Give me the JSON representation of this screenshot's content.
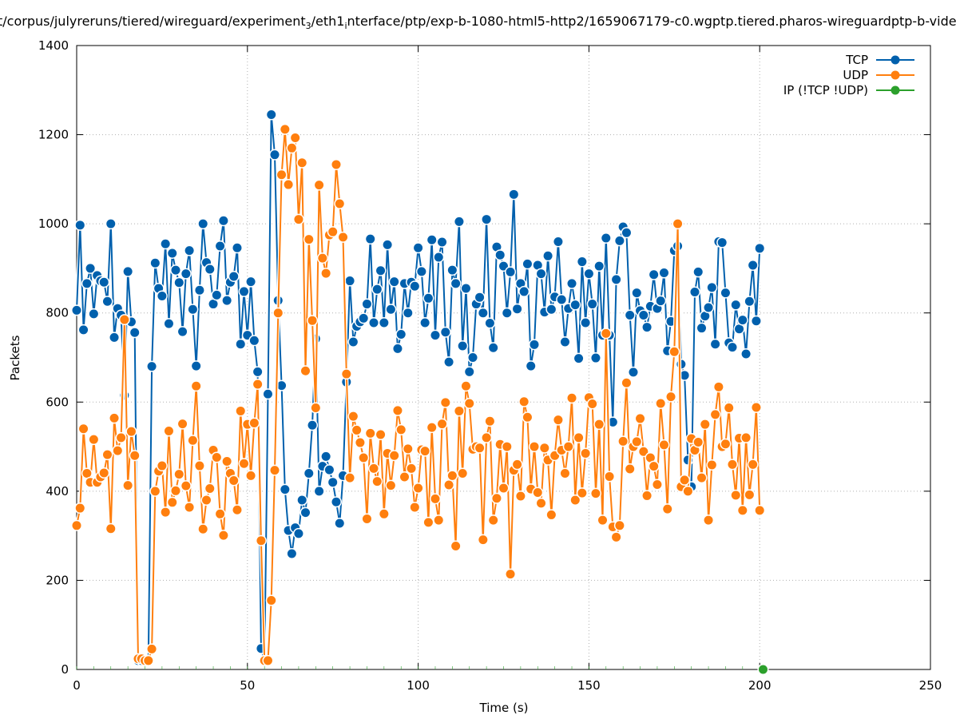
{
  "chart_data": {
    "type": "line",
    "title_parts": [
      "t/corpus/julyreruns/tiered/wireguard/experiment",
      "3",
      "/eth1",
      "i",
      "nterface/ptp/exp-b-1080-html5-http2/1659067179-c0.wgptp.tiered.pharos-wireguardptp-b-vide"
    ],
    "xlabel": "Time (s)",
    "ylabel": "Packets",
    "xlim": [
      0,
      250
    ],
    "ylim": [
      0,
      1400
    ],
    "xticks": [
      0,
      50,
      100,
      150,
      200,
      250
    ],
    "yticks": [
      0,
      200,
      400,
      600,
      800,
      1000,
      1200,
      1400
    ],
    "grid": true,
    "legend_position": "top-right",
    "series": [
      {
        "name": "TCP",
        "color": "#0060ad",
        "values": [
          806,
          997,
          762,
          866,
          900,
          798,
          884,
          872,
          869,
          826,
          1000,
          745,
          810,
          795,
          615,
          893,
          780,
          756,
          20,
          20,
          20,
          20,
          680,
          912,
          855,
          838,
          955,
          776,
          934,
          896,
          868,
          758,
          888,
          940,
          808,
          681,
          851,
          1000,
          913,
          898,
          820,
          840,
          950,
          1007,
          828,
          869,
          882,
          946,
          730,
          848,
          750,
          870,
          738,
          668,
          47,
          20,
          618,
          1245,
          1155,
          828,
          637,
          404,
          312,
          260,
          318,
          305,
          380,
          352,
          440,
          548,
          742,
          400,
          456,
          478,
          448,
          420,
          376,
          328,
          435,
          645,
          872,
          735,
          770,
          780,
          788,
          820,
          966,
          778,
          853,
          895,
          778,
          953,
          808,
          870,
          720,
          752,
          866,
          800,
          869,
          860,
          946,
          893,
          778,
          833,
          964,
          750,
          925,
          959,
          757,
          690,
          896,
          866,
          1005,
          726,
          855,
          668,
          700,
          820,
          835,
          800,
          1010,
          777,
          722,
          948,
          930,
          905,
          800,
          892,
          1066,
          809,
          866,
          848,
          910,
          681,
          729,
          907,
          888,
          802,
          928,
          808,
          836,
          960,
          830,
          735,
          810,
          866,
          818,
          698,
          915,
          778,
          888,
          820,
          699,
          905,
          750,
          968,
          750,
          555,
          875,
          962,
          993,
          980,
          795,
          667,
          845,
          805,
          795,
          768,
          815,
          886,
          810,
          827,
          890,
          715,
          781,
          940,
          950,
          685,
          660,
          470,
          410,
          847,
          892,
          766,
          793,
          812,
          857,
          730,
          960,
          958,
          845,
          733,
          723,
          818,
          764,
          784,
          708,
          826,
          907,
          782,
          945
        ]
      },
      {
        "name": "UDP",
        "color": "#ff7f0e",
        "values": [
          323,
          362,
          540,
          440,
          420,
          516,
          420,
          432,
          441,
          482,
          316,
          564,
          491,
          520,
          785,
          413,
          534,
          480,
          24,
          24,
          20,
          20,
          46,
          400,
          445,
          457,
          353,
          535,
          375,
          401,
          438,
          551,
          412,
          364,
          514,
          636,
          457,
          315,
          380,
          406,
          492,
          476,
          349,
          301,
          467,
          440,
          424,
          358,
          580,
          462,
          550,
          435,
          553,
          640,
          289,
          20,
          20,
          155,
          447,
          800,
          1110,
          1212,
          1088,
          1170,
          1193,
          1010,
          1137,
          670,
          965,
          783,
          587,
          1087,
          923,
          889,
          975,
          982,
          1133,
          1045,
          970,
          663,
          430,
          568,
          537,
          509,
          475,
          338,
          530,
          451,
          422,
          527,
          349,
          485,
          413,
          480,
          581,
          538,
          432,
          495,
          451,
          364,
          407,
          493,
          490,
          330,
          543,
          383,
          335,
          551,
          599,
          414,
          435,
          277,
          580,
          440,
          636,
          597,
          494,
          500,
          497,
          291,
          520,
          557,
          335,
          384,
          505,
          407,
          500,
          214,
          447,
          460,
          389,
          601,
          566,
          405,
          500,
          397,
          373,
          497,
          470,
          347,
          480,
          560,
          492,
          440,
          500,
          609,
          380,
          520,
          396,
          485,
          610,
          596,
          395,
          550,
          335,
          754,
          433,
          320,
          297,
          323,
          512,
          643,
          450,
          500,
          511,
          563,
          489,
          390,
          475,
          456,
          415,
          597,
          504,
          360,
          612,
          713,
          1000,
          410,
          425,
          400,
          518,
          492,
          510,
          430,
          550,
          335,
          459,
          572,
          634,
          500,
          506,
          587,
          460,
          391,
          519,
          357,
          520,
          392,
          460,
          588,
          357
        ]
      },
      {
        "name": "IP (!TCP  !UDP)",
        "color": "#2ca02c",
        "x": [
          201
        ],
        "values": [
          0
        ]
      }
    ]
  }
}
